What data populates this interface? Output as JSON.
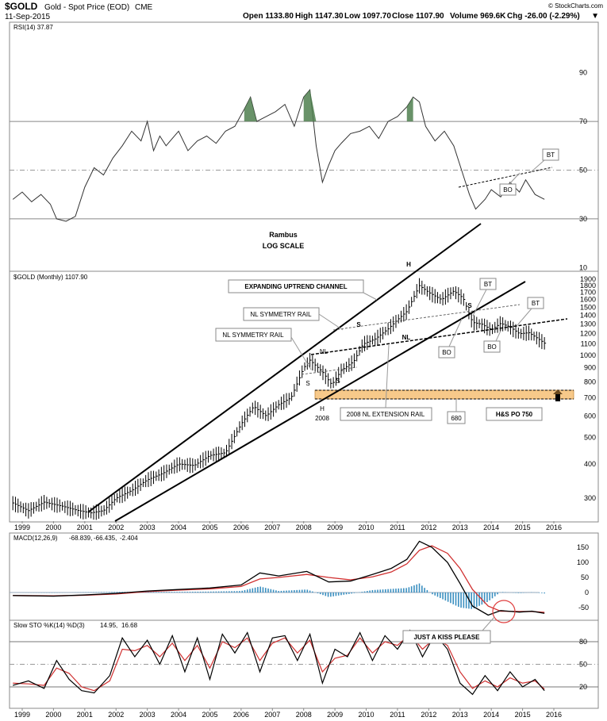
{
  "header": {
    "symbol": "$GOLD",
    "name": "Gold - Spot Price (EOD)",
    "exchange": "CME",
    "date": "11-Sep-2015",
    "open": "Open 1133.80",
    "high": "High 1147.30",
    "low": "Low 1097.70",
    "close": "Close 1107.90",
    "volume": "Volume 969.6K",
    "chg": "Chg -26.00 (-2.29%)",
    "copyright": "© StockCharts.com"
  },
  "labels": {
    "rsi": "RSI(14) 37.87",
    "price": "$GOLD (Monthly) 1107.90",
    "macd_name": "MACD(12,26,9)",
    "macd_v1": "-68.839,",
    "macd_v2": "-66.435,",
    "macd_v3": "-2.404",
    "sto_name": "Slow STO %K(14) %D(3)",
    "sto_v1": "14.95,",
    "sto_v2": "16.68"
  },
  "annotations": {
    "rambus": "Rambus",
    "log_scale": "LOG SCALE",
    "bt": "BT",
    "bo": "BO",
    "h": "H",
    "s": "S",
    "nl": "NL",
    "expanding": "EXPANDING UPTREND CHANNEL",
    "nl_symmetry": "NL SYMMETRY RAIL",
    "nl_extension": "2008 NL EXTENSION RAIL",
    "year_2008": "2008",
    "v680": "680",
    "hs_po": "H&S PO 750",
    "kiss": "JUST A KISS PLEASE"
  },
  "chart_data": [
    {
      "type": "line",
      "title": "RSI(14) 37.87",
      "x_range": [
        1999,
        2016
      ],
      "ylim": [
        0,
        100
      ],
      "y_ticks": [
        10,
        30,
        50,
        70,
        90
      ],
      "reference_lines": [
        30,
        50,
        70
      ],
      "x": [
        1998.7,
        1999.0,
        1999.3,
        1999.6,
        1999.9,
        2000.1,
        2000.4,
        2000.7,
        2001.0,
        2001.3,
        2001.6,
        2001.9,
        2002.2,
        2002.5,
        2002.8,
        2003.0,
        2003.2,
        2003.4,
        2003.6,
        2003.8,
        2004.0,
        2004.3,
        2004.6,
        2004.9,
        2005.2,
        2005.5,
        2005.8,
        2006.1,
        2006.3,
        2006.5,
        2006.8,
        2007.1,
        2007.4,
        2007.7,
        2008.0,
        2008.2,
        2008.4,
        2008.6,
        2008.8,
        2009.0,
        2009.2,
        2009.5,
        2009.8,
        2010.1,
        2010.4,
        2010.7,
        2011.0,
        2011.3,
        2011.5,
        2011.7,
        2011.9,
        2012.2,
        2012.5,
        2012.8,
        2013.1,
        2013.3,
        2013.5,
        2013.8,
        2014.0,
        2014.3,
        2014.6,
        2014.9,
        2015.1,
        2015.4,
        2015.7
      ],
      "y": [
        38,
        41,
        37,
        40,
        36,
        30,
        29,
        31,
        43,
        51,
        48,
        55,
        60,
        66,
        62,
        70,
        58,
        64,
        60,
        63,
        66,
        58,
        62,
        64,
        61,
        66,
        68,
        75,
        80,
        70,
        72,
        74,
        77,
        68,
        80,
        83,
        60,
        45,
        52,
        58,
        61,
        65,
        66,
        68,
        63,
        70,
        72,
        76,
        80,
        78,
        68,
        62,
        66,
        60,
        48,
        40,
        34,
        38,
        42,
        39,
        45,
        41,
        46,
        40,
        38
      ],
      "overbought_fills_x": [
        [
          2006.0,
          2006.6
        ],
        [
          2008.0,
          2008.4
        ],
        [
          2011.2,
          2011.6
        ]
      ]
    },
    {
      "type": "line",
      "title": "$GOLD (Monthly) 1107.90",
      "scale": "log",
      "x_range": [
        1999,
        2016
      ],
      "ylim": [
        250,
        1950
      ],
      "y_ticks": [
        300,
        400,
        500,
        600,
        700,
        800,
        900,
        1000,
        1100,
        1200,
        1300,
        1400,
        1500,
        1600,
        1700,
        1800,
        1900
      ],
      "x": [
        1998.7,
        1999.2,
        1999.7,
        2000.0,
        2000.3,
        2000.8,
        2001.2,
        2001.6,
        2002.0,
        2002.5,
        2003.0,
        2003.5,
        2004.0,
        2004.5,
        2005.0,
        2005.5,
        2006.0,
        2006.4,
        2006.8,
        2007.2,
        2007.6,
        2008.0,
        2008.2,
        2008.6,
        2008.9,
        2009.2,
        2009.6,
        2009.9,
        2010.3,
        2010.7,
        2011.0,
        2011.3,
        2011.7,
        2012.0,
        2012.4,
        2012.8,
        2013.1,
        2013.4,
        2013.7,
        2014.0,
        2014.3,
        2014.6,
        2014.9,
        2015.2,
        2015.5,
        2015.7
      ],
      "y": [
        288,
        270,
        290,
        285,
        280,
        270,
        265,
        270,
        300,
        320,
        350,
        370,
        400,
        395,
        430,
        440,
        560,
        650,
        600,
        660,
        700,
        900,
        960,
        870,
        780,
        880,
        950,
        1100,
        1150,
        1250,
        1350,
        1450,
        1800,
        1700,
        1600,
        1720,
        1620,
        1320,
        1300,
        1240,
        1310,
        1270,
        1200,
        1210,
        1150,
        1108
      ]
    },
    {
      "type": "line",
      "title": "MACD(12,26,9) -68.839, -66.435, -2.404",
      "x_range": [
        1999,
        2016
      ],
      "ylim": [
        -80,
        180
      ],
      "y_ticks": [
        -50,
        0,
        50,
        100,
        150
      ],
      "series": [
        {
          "name": "MACD",
          "x": [
            1998.7,
            2000,
            2001,
            2002,
            2003,
            2004,
            2005,
            2006,
            2006.6,
            2007.2,
            2008.1,
            2008.8,
            2009.5,
            2010.2,
            2010.8,
            2011.3,
            2011.7,
            2012.1,
            2012.6,
            2013.0,
            2013.4,
            2013.9,
            2014.3,
            2014.9,
            2015.3,
            2015.7
          ],
          "values": [
            -10,
            -12,
            -8,
            -3,
            5,
            10,
            15,
            25,
            65,
            55,
            70,
            35,
            38,
            60,
            80,
            110,
            170,
            150,
            100,
            30,
            -45,
            -75,
            -60,
            -65,
            -62,
            -69
          ]
        },
        {
          "name": "Signal",
          "x": [
            1998.7,
            2000,
            2001,
            2002,
            2003,
            2004,
            2005,
            2006,
            2006.6,
            2007.2,
            2008.1,
            2008.8,
            2009.5,
            2010.2,
            2010.8,
            2011.3,
            2011.7,
            2012.1,
            2012.6,
            2013.0,
            2013.4,
            2013.9,
            2014.3,
            2014.9,
            2015.3,
            2015.7
          ],
          "values": [
            -10,
            -11,
            -9,
            -5,
            3,
            8,
            12,
            20,
            45,
            50,
            60,
            50,
            42,
            52,
            68,
            95,
            140,
            155,
            130,
            80,
            10,
            -45,
            -62,
            -63,
            -63,
            -66
          ]
        }
      ]
    },
    {
      "type": "line",
      "title": "Slow STO %K(14) %D(3) 14.95, 16.68",
      "x_range": [
        1999,
        2016
      ],
      "ylim": [
        0,
        100
      ],
      "y_ticks": [
        20,
        50,
        80
      ],
      "reference_lines": [
        20,
        50,
        80
      ],
      "series": [
        {
          "name": "%K",
          "x": [
            1998.7,
            1999.2,
            1999.7,
            2000.1,
            2000.5,
            2000.9,
            2001.3,
            2001.8,
            2002.2,
            2002.6,
            2003.0,
            2003.4,
            2003.8,
            2004.2,
            2004.6,
            2005.0,
            2005.4,
            2005.8,
            2006.2,
            2006.6,
            2007.0,
            2007.4,
            2007.8,
            2008.2,
            2008.6,
            2009.0,
            2009.4,
            2009.8,
            2010.2,
            2010.6,
            2011.0,
            2011.4,
            2011.8,
            2012.2,
            2012.6,
            2013.0,
            2013.4,
            2013.8,
            2014.2,
            2014.6,
            2015.0,
            2015.4,
            2015.7
          ],
          "values": [
            22,
            28,
            18,
            55,
            30,
            15,
            12,
            35,
            85,
            60,
            82,
            50,
            88,
            40,
            85,
            30,
            90,
            65,
            92,
            40,
            85,
            88,
            55,
            90,
            25,
            70,
            60,
            92,
            55,
            88,
            70,
            95,
            60,
            90,
            70,
            25,
            10,
            35,
            15,
            40,
            20,
            30,
            15
          ]
        },
        {
          "name": "%D",
          "x": [
            1998.7,
            1999.2,
            1999.7,
            2000.1,
            2000.5,
            2000.9,
            2001.3,
            2001.8,
            2002.2,
            2002.6,
            2003.0,
            2003.4,
            2003.8,
            2004.2,
            2004.6,
            2005.0,
            2005.4,
            2005.8,
            2006.2,
            2006.6,
            2007.0,
            2007.4,
            2007.8,
            2008.2,
            2008.6,
            2009.0,
            2009.4,
            2009.8,
            2010.2,
            2010.6,
            2011.0,
            2011.4,
            2011.8,
            2012.2,
            2012.6,
            2013.0,
            2013.4,
            2013.8,
            2014.2,
            2014.6,
            2015.0,
            2015.4,
            2015.7
          ],
          "values": [
            25,
            24,
            22,
            45,
            38,
            20,
            15,
            28,
            70,
            68,
            75,
            60,
            78,
            55,
            75,
            45,
            80,
            72,
            85,
            55,
            78,
            85,
            65,
            82,
            40,
            58,
            62,
            85,
            65,
            80,
            75,
            90,
            70,
            85,
            75,
            40,
            18,
            28,
            20,
            32,
            25,
            28,
            17
          ]
        }
      ]
    }
  ]
}
